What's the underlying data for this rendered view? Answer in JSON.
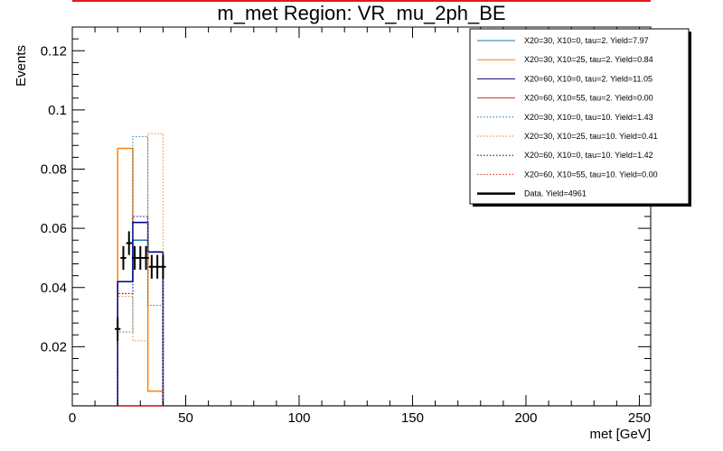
{
  "chart_data": {
    "type": "histogram",
    "title": "m_met Region: VR_mu_2ph_BE",
    "xlabel": "met [GeV]",
    "ylabel": "Events",
    "xlim": [
      0,
      255
    ],
    "ylim": [
      0,
      0.128
    ],
    "x_ticks": [
      0,
      50,
      100,
      150,
      200,
      250
    ],
    "y_ticks": [
      0.02,
      0.04,
      0.06,
      0.08,
      0.1,
      0.12
    ],
    "legend_position": "top-right",
    "bin_edges": [
      20,
      26.67,
      33.33,
      40
    ],
    "series": [
      {
        "name": "X20=30, X10=0, tau=2. Yield=7.97",
        "color": "#1f77b4",
        "style": "solid",
        "values": [
          0.042,
          0.056,
          0.052
        ]
      },
      {
        "name": "X20=30, X10=25, tau=2. Yield=0.84",
        "color": "#ff7f0e",
        "style": "solid",
        "values": [
          0.087,
          0.062,
          0.005
        ]
      },
      {
        "name": "X20=60, X10=0, tau=2. Yield=11.05",
        "color": "#000080",
        "style": "solid",
        "values": [
          0.042,
          0.062,
          0.052
        ]
      },
      {
        "name": "X20=60, X10=55, tau=2. Yield=0.00",
        "color": "#d62728",
        "style": "solid",
        "values": [
          0,
          0,
          0
        ]
      },
      {
        "name": "X20=30, X10=0, tau=10. Yield=1.43",
        "color": "#1f77b4",
        "style": "dotted",
        "values": [
          0.025,
          0.091,
          0.034
        ]
      },
      {
        "name": "X20=30, X10=25, tau=10. Yield=0.41",
        "color": "#ff7f0e",
        "style": "dotted",
        "values": [
          0.037,
          0.022,
          0.092
        ]
      },
      {
        "name": "X20=60, X10=0, tau=10. Yield=1.42",
        "color": "#000080",
        "style": "dotted",
        "values": [
          0.038,
          0.064,
          0.052
        ]
      },
      {
        "name": "X20=60, X10=55, tau=10. Yield=0.00",
        "color": "#d62728",
        "style": "dotted",
        "values": [
          0,
          0,
          0
        ]
      }
    ],
    "data_points": {
      "name": "Data. Yield=4961",
      "color": "#000000",
      "x": [
        20,
        22.5,
        25,
        27.5,
        30,
        32.5,
        35,
        37.5,
        40
      ],
      "y": [
        0.026,
        0.05,
        0.055,
        0.05,
        0.05,
        0.05,
        0.047,
        0.047,
        0.047
      ],
      "yerr": 0.0025,
      "xerr": 1.25
    }
  }
}
